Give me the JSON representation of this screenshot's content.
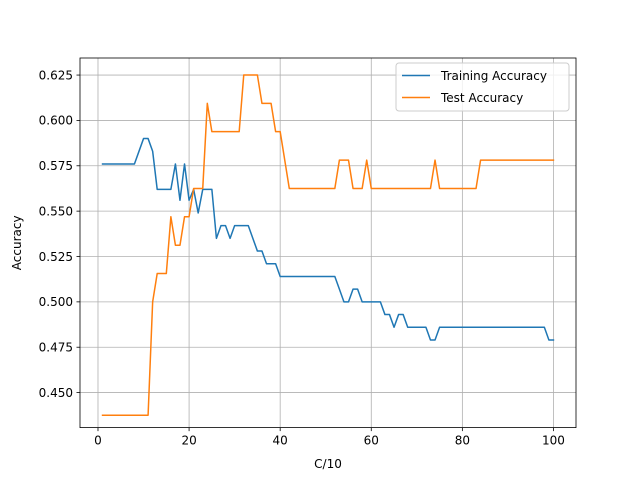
{
  "chart_data": {
    "type": "line",
    "title": "",
    "xlabel": "C/10",
    "ylabel": "Accuracy",
    "xlim": [
      -3.95,
      104.95
    ],
    "ylim": [
      0.4307,
      0.6344
    ],
    "x_ticks": [
      0,
      20,
      40,
      60,
      80,
      100
    ],
    "x_tick_labels": [
      "0",
      "20",
      "40",
      "60",
      "80",
      "100"
    ],
    "y_ticks": [
      0.45,
      0.475,
      0.5,
      0.525,
      0.55,
      0.575,
      0.6,
      0.625
    ],
    "y_tick_labels": [
      "0.450",
      "0.475",
      "0.500",
      "0.525",
      "0.550",
      "0.575",
      "0.600",
      "0.625"
    ],
    "grid": true,
    "legend_position": "top-right",
    "series": [
      {
        "name": "Training Accuracy",
        "color": "#1f77b4",
        "points": [
          [
            1,
            0.576
          ],
          [
            8,
            0.576
          ],
          [
            10,
            0.59
          ],
          [
            11,
            0.59
          ],
          [
            12,
            0.583
          ],
          [
            13,
            0.562
          ],
          [
            16,
            0.562
          ],
          [
            17,
            0.576
          ],
          [
            18,
            0.556
          ],
          [
            19,
            0.576
          ],
          [
            20,
            0.556
          ],
          [
            21,
            0.562
          ],
          [
            22,
            0.549
          ],
          [
            23,
            0.562
          ],
          [
            25,
            0.562
          ],
          [
            26,
            0.535
          ],
          [
            27,
            0.542
          ],
          [
            28,
            0.542
          ],
          [
            29,
            0.535
          ],
          [
            30,
            0.542
          ],
          [
            33,
            0.542
          ],
          [
            34,
            0.535
          ],
          [
            35,
            0.528
          ],
          [
            36,
            0.528
          ],
          [
            37,
            0.521
          ],
          [
            39,
            0.521
          ],
          [
            40,
            0.514
          ],
          [
            52,
            0.514
          ],
          [
            53,
            0.507
          ],
          [
            54,
            0.5
          ],
          [
            55,
            0.5
          ],
          [
            56,
            0.507
          ],
          [
            57,
            0.507
          ],
          [
            58,
            0.5
          ],
          [
            62,
            0.5
          ],
          [
            63,
            0.493
          ],
          [
            64,
            0.493
          ],
          [
            65,
            0.486
          ],
          [
            66,
            0.493
          ],
          [
            67,
            0.493
          ],
          [
            68,
            0.486
          ],
          [
            72,
            0.486
          ],
          [
            73,
            0.479
          ],
          [
            74,
            0.479
          ],
          [
            75,
            0.486
          ],
          [
            98,
            0.486
          ],
          [
            99,
            0.479
          ],
          [
            100,
            0.479
          ]
        ]
      },
      {
        "name": "Test Accuracy",
        "color": "#ff7f0e",
        "points": [
          [
            1,
            0.4375
          ],
          [
            11,
            0.4375
          ],
          [
            12,
            0.5
          ],
          [
            13,
            0.5156
          ],
          [
            15,
            0.5156
          ],
          [
            16,
            0.5469
          ],
          [
            17,
            0.5312
          ],
          [
            18,
            0.5312
          ],
          [
            19,
            0.5469
          ],
          [
            20,
            0.5469
          ],
          [
            21,
            0.5625
          ],
          [
            23,
            0.5625
          ],
          [
            24,
            0.6094
          ],
          [
            25,
            0.5938
          ],
          [
            31,
            0.5938
          ],
          [
            32,
            0.625
          ],
          [
            35,
            0.625
          ],
          [
            36,
            0.6094
          ],
          [
            38,
            0.6094
          ],
          [
            39,
            0.5938
          ],
          [
            40,
            0.5938
          ],
          [
            42,
            0.5625
          ],
          [
            52,
            0.5625
          ],
          [
            53,
            0.5781
          ],
          [
            55,
            0.5781
          ],
          [
            56,
            0.5625
          ],
          [
            58,
            0.5625
          ],
          [
            59,
            0.5781
          ],
          [
            60,
            0.5625
          ],
          [
            73,
            0.5625
          ],
          [
            74,
            0.5781
          ],
          [
            75,
            0.5625
          ],
          [
            83,
            0.5625
          ],
          [
            84,
            0.5781
          ],
          [
            100,
            0.5781
          ]
        ]
      }
    ]
  }
}
